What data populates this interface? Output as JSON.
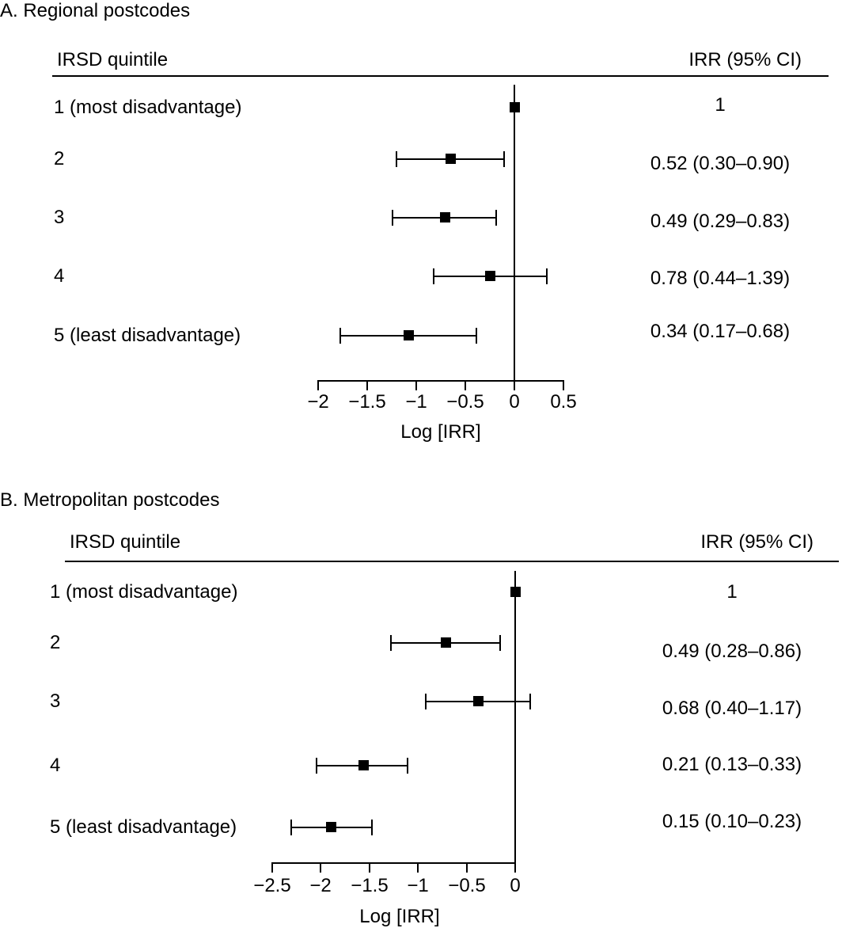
{
  "figure": {
    "kind": "forest-plot-figure",
    "background_color": "#ffffff",
    "text_color": "#000000",
    "marker_color": "#000000"
  },
  "chart_data": [
    {
      "type": "scatter",
      "subtype": "forest",
      "title": "A. Regional postcodes",
      "left_header": "IRSD quintile",
      "right_header": "IRR (95% CI)",
      "xlabel": "Log [IRR]",
      "xlim": [
        -2,
        0.5
      ],
      "xticks": [
        -2,
        -1.5,
        -1,
        -0.5,
        0,
        0.5
      ],
      "xtick_labels": [
        "−2",
        "−1.5",
        "−1",
        "−0.5",
        "0",
        "0.5"
      ],
      "reference_line_x": 0,
      "grid": false,
      "legend": null,
      "rows": [
        {
          "label": "1 (most disadvantage)",
          "irr_text": "1",
          "irr": 1,
          "ci_lo": null,
          "ci_hi": null,
          "log_irr": 0,
          "log_lo": null,
          "log_hi": null
        },
        {
          "label": "2",
          "irr_text": "0.52 (0.30–0.90)",
          "irr": 0.52,
          "ci_lo": 0.3,
          "ci_hi": 0.9,
          "log_irr": -0.654,
          "log_lo": -1.204,
          "log_hi": -0.105
        },
        {
          "label": "3",
          "irr_text": "0.49 (0.29–0.83)",
          "irr": 0.49,
          "ci_lo": 0.29,
          "ci_hi": 0.83,
          "log_irr": -0.713,
          "log_lo": -1.238,
          "log_hi": -0.186
        },
        {
          "label": "4",
          "irr_text": "0.78 (0.44–1.39)",
          "irr": 0.78,
          "ci_lo": 0.44,
          "ci_hi": 1.39,
          "log_irr": -0.248,
          "log_lo": -0.821,
          "log_hi": 0.329
        },
        {
          "label": "5 (least disadvantage)",
          "irr_text": "0.34 (0.17–0.68)",
          "irr": 0.34,
          "ci_lo": 0.17,
          "ci_hi": 0.68,
          "log_irr": -1.079,
          "log_lo": -1.772,
          "log_hi": -0.386
        }
      ]
    },
    {
      "type": "scatter",
      "subtype": "forest",
      "title": "B. Metropolitan postcodes",
      "left_header": "IRSD quintile",
      "right_header": "IRR (95% CI)",
      "xlabel": "Log [IRR]",
      "xlim": [
        -2.5,
        0
      ],
      "xticks": [
        -2.5,
        -2,
        -1.5,
        -1,
        -0.5,
        0
      ],
      "xtick_labels": [
        "−2.5",
        "−2",
        "−1.5",
        "−1",
        "−0.5",
        "0"
      ],
      "reference_line_x": 0,
      "grid": false,
      "legend": null,
      "rows": [
        {
          "label": "1 (most disadvantage)",
          "irr_text": "1",
          "irr": 1,
          "ci_lo": null,
          "ci_hi": null,
          "log_irr": 0,
          "log_lo": null,
          "log_hi": null
        },
        {
          "label": "2",
          "irr_text": "0.49 (0.28–0.86)",
          "irr": 0.49,
          "ci_lo": 0.28,
          "ci_hi": 0.86,
          "log_irr": -0.713,
          "log_lo": -1.273,
          "log_hi": -0.151
        },
        {
          "label": "3",
          "irr_text": "0.68 (0.40–1.17)",
          "irr": 0.68,
          "ci_lo": 0.4,
          "ci_hi": 1.17,
          "log_irr": -0.386,
          "log_lo": -0.916,
          "log_hi": 0.157
        },
        {
          "label": "4",
          "irr_text": "0.21 (0.13–0.33)",
          "irr": 0.21,
          "ci_lo": 0.13,
          "ci_hi": 0.33,
          "log_irr": -1.561,
          "log_lo": -2.04,
          "log_hi": -1.109
        },
        {
          "label": "5 (least disadvantage)",
          "irr_text": "0.15 (0.10–0.23)",
          "irr": 0.15,
          "ci_lo": 0.1,
          "ci_hi": 0.23,
          "log_irr": -1.897,
          "log_lo": -2.303,
          "log_hi": -1.47
        }
      ]
    }
  ]
}
